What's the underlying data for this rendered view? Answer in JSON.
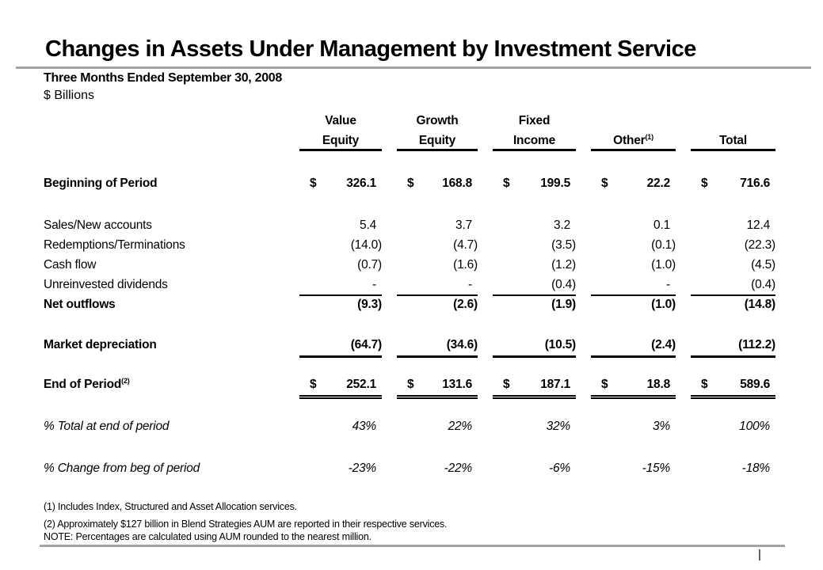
{
  "header": {
    "title": "Changes in Assets Under Management by Investment Service",
    "subtitle": "Three Months Ended September 30, 2008",
    "units": "$ Billions"
  },
  "table": {
    "columns": [
      {
        "line1": "Value",
        "line2": "Equity",
        "sup": ""
      },
      {
        "line1": "Growth",
        "line2": "Equity",
        "sup": ""
      },
      {
        "line1": "Fixed",
        "line2": "Income",
        "sup": ""
      },
      {
        "line1": "",
        "line2": "Other",
        "sup": "(1)"
      },
      {
        "line1": "",
        "line2": "Total",
        "sup": ""
      }
    ],
    "rows": [
      {
        "label": "Beginning of Period",
        "sup": "",
        "dollar": "$",
        "values": [
          "326.1",
          "168.8",
          "199.5",
          "22.2",
          "716.6"
        ]
      },
      {
        "label": "Sales/New accounts",
        "sup": "",
        "dollar": "",
        "values": [
          "5.4",
          "3.7",
          "3.2",
          "0.1",
          "12.4"
        ]
      },
      {
        "label": "Redemptions/Terminations",
        "sup": "",
        "dollar": "",
        "values": [
          "(14.0)",
          "(4.7)",
          "(3.5)",
          "(0.1)",
          "(22.3)"
        ]
      },
      {
        "label": "Cash flow",
        "sup": "",
        "dollar": "",
        "values": [
          "(0.7)",
          "(1.6)",
          "(1.2)",
          "(1.0)",
          "(4.5)"
        ]
      },
      {
        "label": "Unreinvested dividends",
        "sup": "",
        "dollar": "",
        "values": [
          "-",
          "-",
          "(0.4)",
          "-",
          "(0.4)"
        ]
      },
      {
        "label": "Net outflows",
        "sup": "",
        "dollar": "",
        "values": [
          "(9.3)",
          "(2.6)",
          "(1.9)",
          "(1.0)",
          "(14.8)"
        ]
      },
      {
        "label": "Market depreciation",
        "sup": "",
        "dollar": "",
        "values": [
          "(64.7)",
          "(34.6)",
          "(10.5)",
          "(2.4)",
          "(112.2)"
        ]
      },
      {
        "label": "End of Period",
        "sup": "(2)",
        "dollar": "$",
        "values": [
          "252.1",
          "131.6",
          "187.1",
          "18.8",
          "589.6"
        ]
      },
      {
        "label": "% Total at end of period",
        "sup": "",
        "dollar": "",
        "values": [
          "43%",
          "22%",
          "32%",
          "3%",
          "100%"
        ]
      },
      {
        "label": "% Change from beg of period",
        "sup": "",
        "dollar": "",
        "values": [
          "-23%",
          "-22%",
          "-6%",
          "-15%",
          "-18%"
        ]
      }
    ]
  },
  "footnotes": [
    "(1) Includes Index, Structured and Asset Allocation services.",
    "(2) Approximately $127 billion in Blend Strategies AUM are reported in their respective services.",
    "NOTE: Percentages are calculated using AUM rounded to the nearest million."
  ],
  "page_marker": "|"
}
